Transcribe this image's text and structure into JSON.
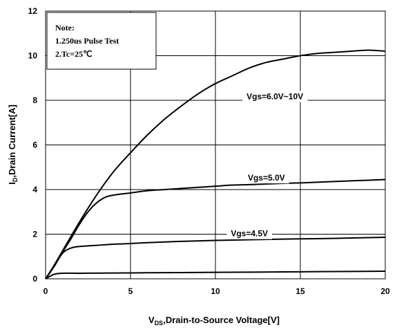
{
  "chart_data": {
    "type": "line",
    "title": "",
    "xlabel_main": "V",
    "xlabel_sub": "DS",
    "xlabel_rest": ",Drain-to-Source Voltage[V]",
    "ylabel_main": "I",
    "ylabel_sub": "D",
    "ylabel_rest": ",Drain Current[A]",
    "xlim": [
      0,
      20
    ],
    "ylim": [
      0,
      12
    ],
    "x_ticks": [
      0,
      5,
      10,
      15,
      20
    ],
    "y_ticks": [
      0,
      2,
      4,
      6,
      8,
      10,
      12
    ],
    "grid": true,
    "note": {
      "lines": [
        "Note:",
        "1.250us Pulse Test",
        "2.Tc=25℃"
      ]
    },
    "series": [
      {
        "name": "Vgs=6.0V~10V",
        "label_at": [
          13.5,
          8.05
        ],
        "x": [
          0,
          0.5,
          1,
          2,
          3,
          4,
          5,
          6,
          7,
          8,
          9,
          10,
          11,
          12,
          13,
          14,
          15,
          16,
          17,
          18,
          19,
          20
        ],
        "y": [
          0,
          0.6,
          1.25,
          2.55,
          3.75,
          4.8,
          5.65,
          6.45,
          7.15,
          7.75,
          8.3,
          8.75,
          9.1,
          9.45,
          9.7,
          9.85,
          10.0,
          10.1,
          10.15,
          10.2,
          10.25,
          10.2
        ]
      },
      {
        "name": "Vgs=5.0V",
        "label_at": [
          13.0,
          4.4
        ],
        "x": [
          0,
          0.5,
          1,
          1.5,
          2,
          2.5,
          3,
          3.5,
          4,
          5,
          6,
          7,
          8,
          9,
          10,
          11,
          12,
          13,
          14,
          15,
          16,
          17,
          18,
          19,
          20
        ],
        "y": [
          0,
          0.55,
          1.2,
          1.8,
          2.45,
          3.0,
          3.4,
          3.65,
          3.75,
          3.85,
          3.95,
          4.0,
          4.05,
          4.1,
          4.15,
          4.2,
          4.22,
          4.25,
          4.28,
          4.3,
          4.33,
          4.36,
          4.39,
          4.42,
          4.45
        ]
      },
      {
        "name": "Vgs=4.5V",
        "label_at": [
          12.0,
          1.9
        ],
        "x": [
          0,
          0.5,
          1,
          1.5,
          2,
          3,
          4,
          5,
          6,
          8,
          10,
          12,
          14,
          16,
          18,
          20
        ],
        "y": [
          0,
          0.55,
          1.15,
          1.38,
          1.45,
          1.5,
          1.55,
          1.58,
          1.62,
          1.68,
          1.72,
          1.75,
          1.78,
          1.8,
          1.83,
          1.86
        ]
      },
      {
        "name": "",
        "x": [
          0,
          0.5,
          1,
          2,
          4,
          6,
          8,
          10,
          12,
          14,
          16,
          18,
          20
        ],
        "y": [
          0,
          0.2,
          0.25,
          0.25,
          0.26,
          0.27,
          0.28,
          0.29,
          0.3,
          0.31,
          0.32,
          0.33,
          0.34
        ]
      }
    ]
  }
}
